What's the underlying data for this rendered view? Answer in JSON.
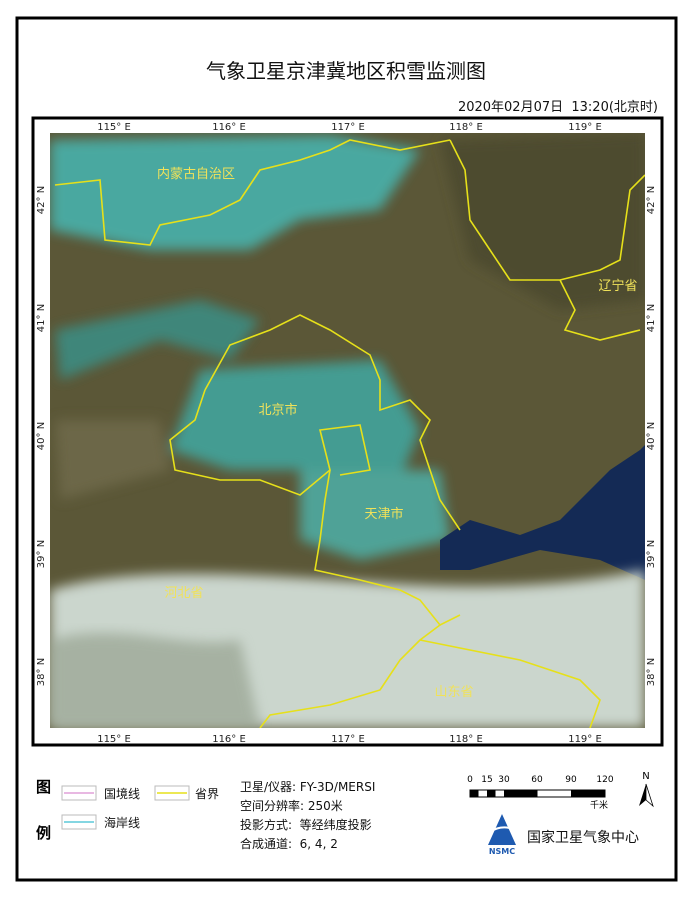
{
  "header": {
    "title": "气象卫星京津冀地区积雪监测图",
    "datetime": "2020年02月07日  13:20(北京时)"
  },
  "map": {
    "longitude_labels": [
      "115° E",
      "116° E",
      "117° E",
      "118° E",
      "119° E"
    ],
    "latitude_labels": [
      "42° N",
      "41° N",
      "40° N",
      "39° N",
      "38° N"
    ],
    "place_labels": [
      "内蒙古自治区",
      "辽宁省",
      "北京市",
      "天津市",
      "河北省",
      "山东省"
    ]
  },
  "legend": {
    "heading": [
      "图",
      "例"
    ],
    "items": [
      "国境线",
      "省界",
      "海岸线"
    ]
  },
  "info": {
    "lines": [
      "卫星/仪器: FY-3D/MERSI",
      "空间分辨率: 250米",
      "投影方式:  等经纬度投影",
      "合成通道:  6, 4, 2"
    ]
  },
  "scale_bar": {
    "labels": [
      "0",
      "15",
      "30",
      "60",
      "90",
      "120"
    ],
    "unit": "千米"
  },
  "north": "N",
  "agency": {
    "logo": "NSMC",
    "name": "国家卫星气象中心"
  }
}
